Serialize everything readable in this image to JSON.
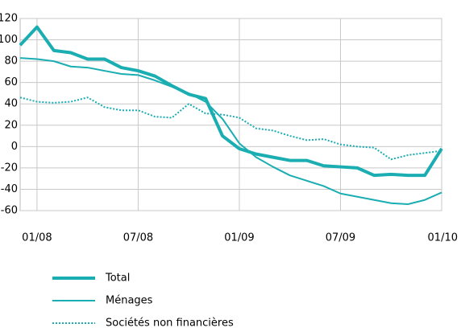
{
  "chart_data": {
    "type": "line",
    "x": [
      -1,
      0,
      1,
      2,
      3,
      4,
      5,
      6,
      7,
      8,
      9,
      10,
      11,
      12,
      13,
      14,
      15,
      16,
      17,
      18,
      19,
      20,
      21,
      22,
      23,
      24
    ],
    "xlim": [
      -1,
      24
    ],
    "xticks": [
      {
        "value": 0,
        "label": "01/08"
      },
      {
        "value": 6,
        "label": "07/08"
      },
      {
        "value": 12,
        "label": "01/09"
      },
      {
        "value": 18,
        "label": "07/09"
      },
      {
        "value": 24,
        "label": "01/10"
      }
    ],
    "ylim": [
      -60,
      120
    ],
    "yticks": [
      -60,
      -40,
      -20,
      0,
      20,
      40,
      60,
      80,
      100,
      120
    ],
    "grid": true,
    "series": [
      {
        "name": "Total",
        "color": "#1aadb2",
        "linewidth": 4,
        "linestyle": "solid",
        "values": [
          95,
          112,
          90,
          88,
          82,
          82,
          74,
          71,
          66,
          57,
          49,
          45,
          10,
          -2,
          -7,
          -10,
          -13,
          -13,
          -18,
          -19,
          -20,
          -27,
          -26,
          -27,
          -27,
          -2
        ]
      },
      {
        "name": "Ménages",
        "color": "#1aadb2",
        "linewidth": 2,
        "linestyle": "solid",
        "values": [
          83,
          82,
          80,
          75,
          74,
          71,
          68,
          67,
          62,
          56,
          50,
          42,
          26,
          3,
          -10,
          -19,
          -27,
          -32,
          -37,
          -44,
          -47,
          -50,
          -53,
          -54,
          -50,
          -43
        ]
      },
      {
        "name": "Sociétés non financières",
        "color": "#1aadb2",
        "linewidth": 2,
        "linestyle": "dotted",
        "values": [
          46,
          42,
          41,
          42,
          46,
          37,
          34,
          34,
          28,
          27,
          40,
          31,
          30,
          27,
          17,
          15,
          10,
          6,
          7,
          2,
          0,
          -1,
          -12,
          -8,
          -6,
          -4
        ]
      }
    ]
  }
}
